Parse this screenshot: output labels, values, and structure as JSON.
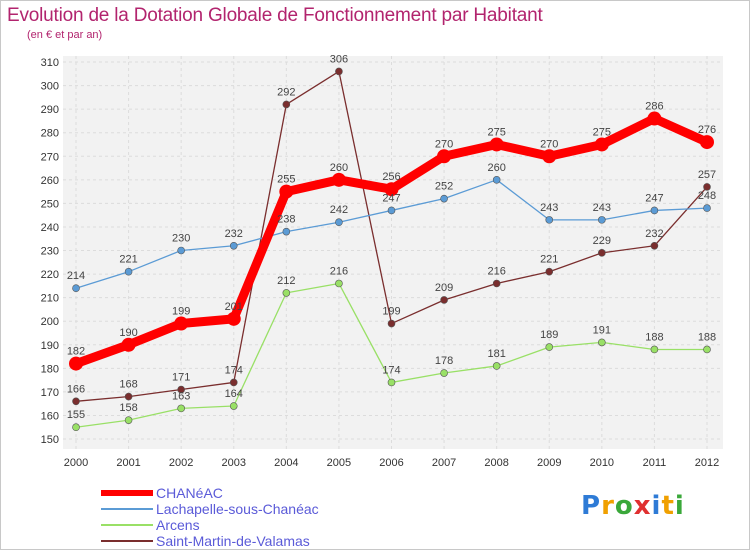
{
  "brand": {
    "name": "Proxiti"
  },
  "chart_data": {
    "type": "line",
    "title": "Evolution de la Dotation Globale de Fonctionnement par Habitant",
    "subtitle": "(en € et par an)",
    "xlabel": "",
    "ylabel": "",
    "ylim": [
      150,
      310
    ],
    "ytick_step": 10,
    "grid": true,
    "legend_position": "bottom-left",
    "categories": [
      "2000",
      "2001",
      "2002",
      "2003",
      "2004",
      "2005",
      "2006",
      "2007",
      "2008",
      "2009",
      "2010",
      "2011",
      "2012"
    ],
    "series": [
      {
        "name": "CHANéAC",
        "color": "#ff0000",
        "values": [
          182,
          190,
          199,
          201,
          255,
          260,
          256,
          270,
          275,
          270,
          275,
          286,
          276
        ]
      },
      {
        "name": "Lachapelle-sous-Chanéac",
        "color": "#5b9bd5",
        "values": [
          214,
          221,
          230,
          232,
          238,
          242,
          247,
          252,
          260,
          243,
          243,
          247,
          248
        ]
      },
      {
        "name": "Arcens",
        "color": "#99e066",
        "values": [
          155,
          158,
          163,
          164,
          212,
          216,
          174,
          178,
          181,
          189,
          191,
          188,
          188
        ]
      },
      {
        "name": "Saint-Martin-de-Valamas",
        "color": "#7a2e2e",
        "values": [
          166,
          168,
          171,
          174,
          292,
          306,
          199,
          209,
          216,
          221,
          229,
          232,
          257
        ]
      }
    ]
  }
}
